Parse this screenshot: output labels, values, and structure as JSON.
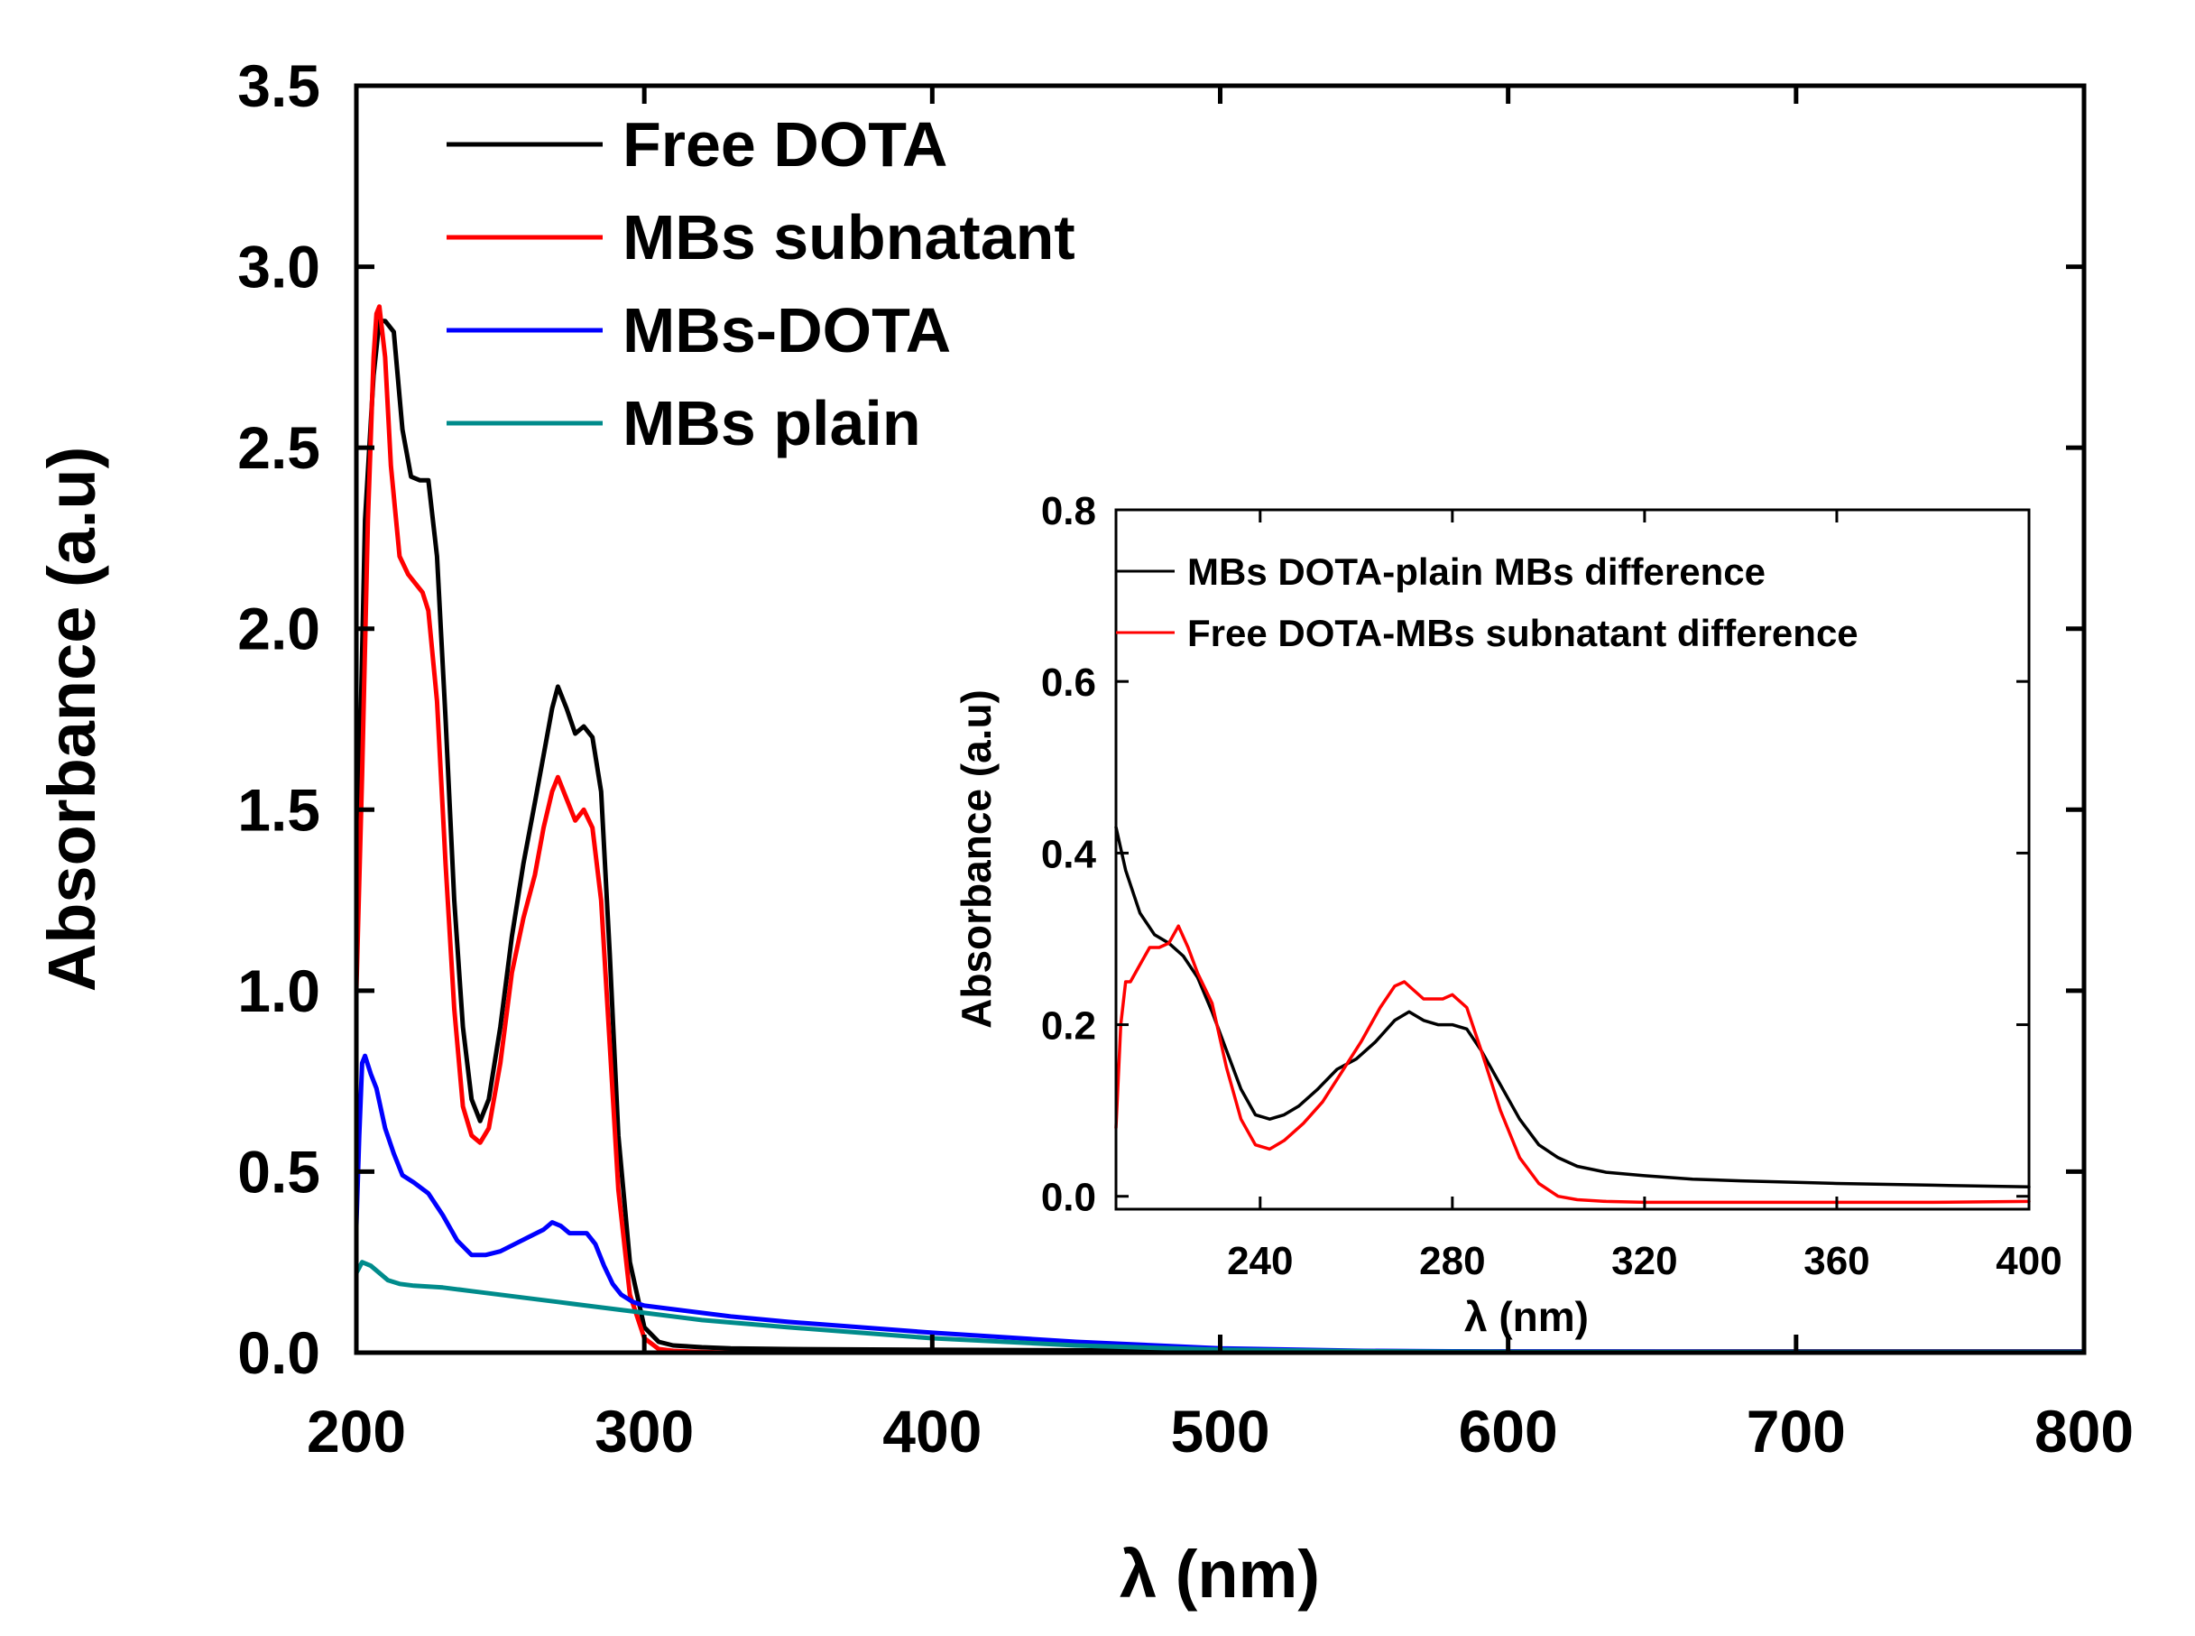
{
  "chart_data": [
    {
      "id": "main",
      "type": "line",
      "title": "",
      "xlabel": "λ (nm)",
      "ylabel": "Absorbance (a.u)",
      "xlim": [
        200,
        800
      ],
      "ylim": [
        0,
        3.5
      ],
      "xticks": [
        200,
        300,
        400,
        500,
        600,
        700,
        800
      ],
      "xtick_labels": [
        "200",
        "300",
        "400",
        "500",
        "600",
        "700",
        "800"
      ],
      "yticks": [
        0,
        0.5,
        1.0,
        1.5,
        2.0,
        2.5,
        3.0,
        3.5
      ],
      "ytick_labels": [
        "0.0",
        "0.5",
        "1.0",
        "1.5",
        "2.0",
        "2.5",
        "3.0",
        "3.5"
      ],
      "legend_position": "top-left",
      "grid": false,
      "series": [
        {
          "name": "Free DOTA",
          "color": "#000000",
          "x": [
            200,
            203,
            206,
            208,
            210,
            213,
            216,
            219,
            222,
            225,
            228,
            231,
            234,
            237,
            240,
            243,
            246,
            250,
            254,
            258,
            262,
            265,
            268,
            270,
            273,
            276,
            279,
            282,
            285,
            288,
            291,
            295,
            300,
            305,
            310,
            320,
            330,
            350,
            400,
            500,
            600,
            700,
            800
          ],
          "y": [
            1.2,
            2.3,
            2.7,
            2.85,
            2.85,
            2.82,
            2.55,
            2.42,
            2.41,
            2.41,
            2.2,
            1.75,
            1.25,
            0.9,
            0.7,
            0.64,
            0.7,
            0.9,
            1.15,
            1.35,
            1.52,
            1.65,
            1.78,
            1.84,
            1.78,
            1.71,
            1.73,
            1.7,
            1.55,
            1.1,
            0.6,
            0.25,
            0.07,
            0.03,
            0.02,
            0.015,
            0.012,
            0.01,
            0.008,
            0.005,
            0.003,
            0.003,
            0.003
          ]
        },
        {
          "name": "MBs subnatant",
          "color": "#ff0000",
          "x": [
            200,
            202,
            204,
            206,
            207,
            208,
            210,
            212,
            215,
            218,
            221,
            223,
            225,
            228,
            231,
            234,
            237,
            240,
            243,
            246,
            250,
            254,
            258,
            262,
            265,
            268,
            270,
            273,
            276,
            279,
            282,
            285,
            288,
            291,
            295,
            300,
            305,
            310,
            320,
            330,
            350,
            400,
            500,
            600,
            700,
            800
          ],
          "y": [
            1.0,
            1.6,
            2.3,
            2.75,
            2.87,
            2.89,
            2.75,
            2.45,
            2.2,
            2.15,
            2.12,
            2.1,
            2.05,
            1.8,
            1.35,
            0.95,
            0.68,
            0.6,
            0.58,
            0.62,
            0.8,
            1.05,
            1.2,
            1.32,
            1.45,
            1.55,
            1.59,
            1.53,
            1.47,
            1.5,
            1.45,
            1.25,
            0.85,
            0.45,
            0.16,
            0.04,
            0.01,
            0.005,
            0.002,
            0.0,
            0.0,
            0.0,
            0.0,
            0.0,
            0.0,
            0.0
          ]
        },
        {
          "name": "MBs-DOTA",
          "color": "#0000ff",
          "x": [
            200,
            201,
            202,
            203,
            205,
            207,
            210,
            213,
            216,
            220,
            225,
            230,
            235,
            240,
            245,
            250,
            255,
            260,
            265,
            268,
            271,
            274,
            277,
            280,
            283,
            286,
            289,
            292,
            296,
            300,
            310,
            330,
            350,
            400,
            450,
            500,
            550,
            600,
            700,
            800
          ],
          "y": [
            0.35,
            0.6,
            0.8,
            0.82,
            0.77,
            0.73,
            0.62,
            0.55,
            0.49,
            0.47,
            0.44,
            0.38,
            0.31,
            0.27,
            0.27,
            0.28,
            0.3,
            0.32,
            0.34,
            0.36,
            0.35,
            0.33,
            0.33,
            0.33,
            0.3,
            0.24,
            0.19,
            0.16,
            0.14,
            0.13,
            0.12,
            0.1,
            0.085,
            0.055,
            0.03,
            0.012,
            0.005,
            0.003,
            0.002,
            0.002
          ]
        },
        {
          "name": "MBs plain",
          "color": "#008b8b",
          "x": [
            200,
            202,
            205,
            208,
            211,
            215,
            220,
            230,
            240,
            250,
            260,
            270,
            280,
            290,
            300,
            320,
            350,
            400,
            450,
            500,
            550,
            600,
            700,
            800
          ],
          "y": [
            0.22,
            0.25,
            0.24,
            0.22,
            0.2,
            0.19,
            0.185,
            0.18,
            0.17,
            0.16,
            0.15,
            0.14,
            0.13,
            0.12,
            0.11,
            0.09,
            0.07,
            0.04,
            0.02,
            0.008,
            0.004,
            0.002,
            0.001,
            0.001
          ]
        }
      ]
    },
    {
      "id": "inset",
      "type": "line",
      "title": "",
      "xlabel": "λ (nm)",
      "ylabel": "Absorbance (a.u)",
      "xlim": [
        210,
        400
      ],
      "ylim": [
        -0.015,
        0.8
      ],
      "xticks": [
        240,
        280,
        320,
        360,
        400
      ],
      "xtick_labels": [
        "240",
        "280",
        "320",
        "360",
        "400"
      ],
      "yticks": [
        0,
        0.2,
        0.4,
        0.6,
        0.8
      ],
      "ytick_labels": [
        "0.0",
        "0.2",
        "0.4",
        "0.6",
        "0.8"
      ],
      "legend_position": "top-left",
      "grid": false,
      "series": [
        {
          "name": "MBs DOTA-plain MBs difference",
          "color": "#000000",
          "x": [
            210,
            212,
            215,
            218,
            221,
            224,
            227,
            230,
            233,
            236,
            239,
            242,
            245,
            248,
            252,
            256,
            260,
            264,
            268,
            271,
            274,
            277,
            280,
            283,
            286,
            290,
            294,
            298,
            302,
            306,
            312,
            320,
            330,
            340,
            360,
            380,
            400
          ],
          "y": [
            0.43,
            0.38,
            0.33,
            0.305,
            0.295,
            0.28,
            0.255,
            0.215,
            0.17,
            0.125,
            0.095,
            0.09,
            0.095,
            0.105,
            0.125,
            0.148,
            0.16,
            0.18,
            0.205,
            0.215,
            0.205,
            0.2,
            0.2,
            0.195,
            0.17,
            0.13,
            0.09,
            0.06,
            0.045,
            0.035,
            0.028,
            0.024,
            0.02,
            0.018,
            0.015,
            0.013,
            0.011
          ]
        },
        {
          "name": "Free DOTA-MBs subnatant difference",
          "color": "#ff0000",
          "x": [
            210,
            211,
            212,
            213,
            215,
            217,
            219,
            221,
            223,
            225,
            227,
            230,
            233,
            236,
            239,
            242,
            245,
            249,
            253,
            257,
            261,
            265,
            268,
            270,
            272,
            274,
            276,
            278,
            280,
            283,
            286,
            290,
            294,
            298,
            302,
            306,
            312,
            320,
            340,
            360,
            380,
            400
          ],
          "y": [
            0.08,
            0.2,
            0.25,
            0.25,
            0.27,
            0.29,
            0.29,
            0.295,
            0.315,
            0.29,
            0.26,
            0.225,
            0.15,
            0.09,
            0.06,
            0.055,
            0.065,
            0.085,
            0.11,
            0.145,
            0.18,
            0.22,
            0.245,
            0.25,
            0.24,
            0.23,
            0.23,
            0.23,
            0.235,
            0.22,
            0.17,
            0.1,
            0.045,
            0.015,
            0.0,
            -0.004,
            -0.006,
            -0.007,
            -0.007,
            -0.007,
            -0.007,
            -0.006
          ]
        }
      ]
    }
  ]
}
